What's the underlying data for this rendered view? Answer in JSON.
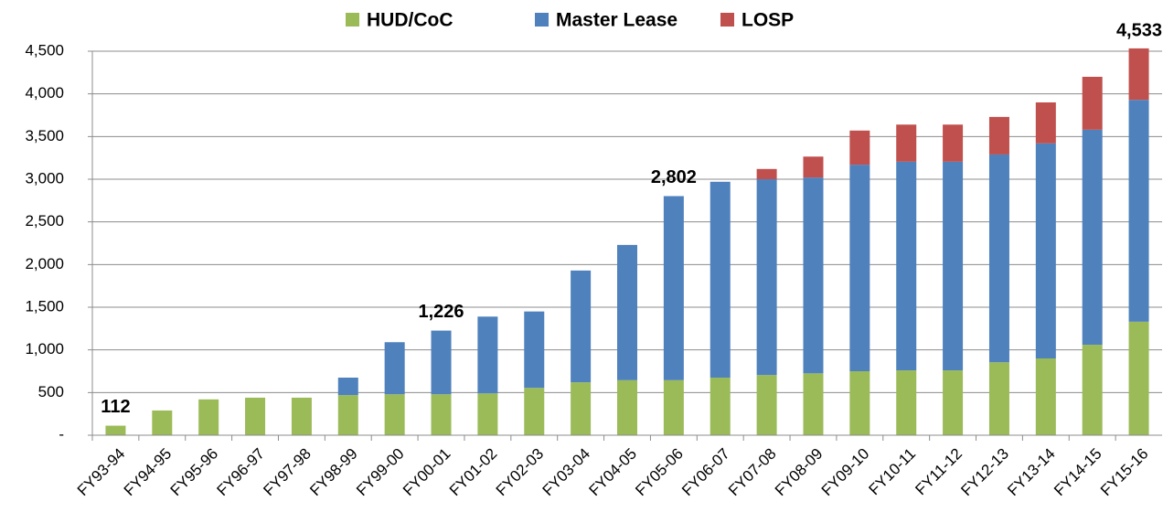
{
  "chart_data": {
    "type": "stacked_bar",
    "categories": [
      "FY93-94",
      "FY94-95",
      "FY95-96",
      "FY96-97",
      "FY97-98",
      "FY98-99",
      "FY99-00",
      "FY00-01",
      "FY01-02",
      "FY02-03",
      "FY03-04",
      "FY04-05",
      "FY05-06",
      "FY06-07",
      "FY07-08",
      "FY08-09",
      "FY09-10",
      "FY10-11",
      "FY11-12",
      "FY12-13",
      "FY13-14",
      "FY14-15",
      "FY15-16"
    ],
    "series": [
      {
        "name": "HUD/CoC",
        "color": "#9bbb59",
        "values": [
          112,
          290,
          420,
          440,
          440,
          470,
          480,
          480,
          490,
          555,
          620,
          645,
          645,
          675,
          705,
          725,
          750,
          760,
          760,
          855,
          900,
          1060,
          1330
        ]
      },
      {
        "name": "Master Lease",
        "color": "#4f81bd",
        "values": [
          null,
          null,
          null,
          null,
          null,
          205,
          610,
          746,
          900,
          895,
          1310,
          1585,
          2157,
          2295,
          2295,
          2295,
          2420,
          2445,
          2445,
          2435,
          2520,
          2520,
          2600
        ]
      },
      {
        "name": "LOSP",
        "color": "#c0504d",
        "values": [
          null,
          null,
          null,
          null,
          null,
          null,
          null,
          null,
          null,
          null,
          null,
          null,
          null,
          null,
          120,
          245,
          400,
          435,
          435,
          440,
          480,
          620,
          603
        ]
      }
    ],
    "annotations": [
      {
        "category": "FY93-94",
        "label": "112"
      },
      {
        "category": "FY00-01",
        "label": "1,226"
      },
      {
        "category": "FY05-06",
        "label": "2,802"
      },
      {
        "category": "FY15-16",
        "label": "4,533"
      }
    ],
    "ylim": [
      0,
      4500
    ],
    "yticks": [
      {
        "value": 0,
        "label": "-"
      },
      {
        "value": 500,
        "label": "500"
      },
      {
        "value": 1000,
        "label": "1,000"
      },
      {
        "value": 1500,
        "label": "1,500"
      },
      {
        "value": 2000,
        "label": "2,000"
      },
      {
        "value": 2500,
        "label": "2,500"
      },
      {
        "value": 3000,
        "label": "3,000"
      },
      {
        "value": 3500,
        "label": "3,500"
      },
      {
        "value": 4000,
        "label": "4,000"
      },
      {
        "value": 4500,
        "label": "4,500"
      }
    ],
    "grid": true,
    "legend": "top"
  }
}
